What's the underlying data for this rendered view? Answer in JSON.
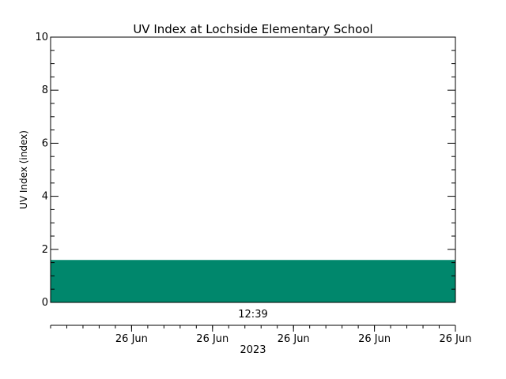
{
  "chart_data": {
    "type": "area",
    "title": "UV Index at Lochside Elementary School",
    "ylabel": "UV Index (index)",
    "ylim": [
      0,
      10
    ],
    "y_ticks": [
      0,
      2,
      4,
      6,
      8,
      10
    ],
    "y_tick_labels": [
      "0",
      "2",
      "4",
      "6",
      "8",
      "10"
    ],
    "x_tick_labels": [
      "26 Jun",
      "26 Jun",
      "26 Jun",
      "26 Jun",
      "26 Jun"
    ],
    "x_year_label": "2023",
    "time_label": "12:39",
    "series": [
      {
        "values": [
          1.6,
          1.6
        ]
      }
    ],
    "fill_color": "#00876c"
  }
}
